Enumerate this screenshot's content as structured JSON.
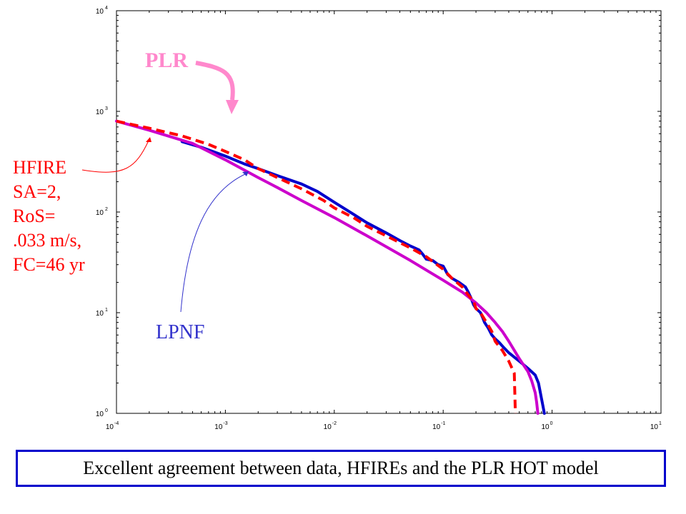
{
  "chart_data": {
    "type": "line",
    "xscale": "log",
    "yscale": "log",
    "xlim": [
      0.0001,
      10
    ],
    "ylim": [
      1,
      10000
    ],
    "grid": false,
    "x_ticks": [
      {
        "base": "10",
        "exp": "-4",
        "value": 0.0001
      },
      {
        "base": "10",
        "exp": "-3",
        "value": 0.001
      },
      {
        "base": "10",
        "exp": "-2",
        "value": 0.01
      },
      {
        "base": "10",
        "exp": "-1",
        "value": 0.1
      },
      {
        "base": "10",
        "exp": "0",
        "value": 1
      },
      {
        "base": "10",
        "exp": "1",
        "value": 10
      }
    ],
    "y_ticks": [
      {
        "base": "10",
        "exp": "0",
        "value": 1
      },
      {
        "base": "10",
        "exp": "1",
        "value": 10
      },
      {
        "base": "10",
        "exp": "2",
        "value": 100
      },
      {
        "base": "10",
        "exp": "3",
        "value": 1000
      },
      {
        "base": "10",
        "exp": "4",
        "value": 10000
      }
    ],
    "series": [
      {
        "name": "LPNF",
        "color": "#0000cc",
        "dash": "solid",
        "x": [
          0.0004,
          0.0006,
          0.001,
          0.0015,
          0.002,
          0.003,
          0.005,
          0.007,
          0.01,
          0.015,
          0.02,
          0.03,
          0.04,
          0.05,
          0.06,
          0.065,
          0.07,
          0.08,
          0.09,
          0.1,
          0.11,
          0.12,
          0.14,
          0.16,
          0.17,
          0.18,
          0.19,
          0.2,
          0.21,
          0.22,
          0.23,
          0.24,
          0.26,
          0.28,
          0.3,
          0.33,
          0.36,
          0.4,
          0.5,
          0.6,
          0.7,
          0.75,
          0.8,
          0.85
        ],
        "y": [
          500,
          440,
          360,
          300,
          270,
          230,
          190,
          160,
          125,
          95,
          78,
          62,
          52,
          46,
          42,
          38,
          34,
          33,
          30,
          29,
          24,
          22,
          20,
          18,
          16,
          14,
          12,
          11,
          10.5,
          10,
          9,
          8,
          7,
          6,
          5.5,
          5,
          4.5,
          4,
          3.3,
          2.8,
          2.4,
          2,
          1.4,
          1
        ]
      },
      {
        "name": "HFIRE SA=2, RoS=.033 m/s, FC=46 yr",
        "color": "#ff0000",
        "dash": "dashed",
        "x": [
          0.0001,
          0.0002,
          0.0004,
          0.0007,
          0.001,
          0.0015,
          0.002,
          0.003,
          0.005,
          0.008,
          0.01,
          0.015,
          0.02,
          0.03,
          0.05,
          0.07,
          0.1,
          0.12,
          0.15,
          0.17,
          0.19,
          0.2,
          0.22,
          0.25,
          0.28,
          0.3,
          0.35,
          0.4,
          0.45,
          0.46
        ],
        "y": [
          800,
          680,
          570,
          470,
          400,
          330,
          270,
          220,
          170,
          130,
          110,
          88,
          72,
          58,
          44,
          36,
          27,
          22,
          18,
          15,
          13,
          11,
          10,
          8,
          6.5,
          5.2,
          4.2,
          3.3,
          2.5,
          1
        ]
      },
      {
        "name": "PLR",
        "color": "#cc00cc",
        "dash": "solid",
        "x": [
          0.0001,
          0.0002,
          0.0005,
          0.001,
          0.002,
          0.003,
          0.005,
          0.01,
          0.02,
          0.05,
          0.1,
          0.15,
          0.2,
          0.25,
          0.3,
          0.35,
          0.4,
          0.5,
          0.6,
          0.65,
          0.7,
          0.72,
          0.74
        ],
        "y": [
          800,
          650,
          480,
          330,
          220,
          175,
          130,
          88,
          58,
          33,
          21,
          16,
          12.5,
          10,
          8,
          6.5,
          5.2,
          3.5,
          2.6,
          2.1,
          1.6,
          1.3,
          1
        ]
      }
    ],
    "annotations": {
      "plr": {
        "text": "PLR",
        "color": "#ff88cc"
      },
      "lpnf": {
        "text": "LPNF",
        "color": "#3333cc"
      },
      "hfire": {
        "lines": [
          "HFIRE",
          "SA=2,",
          "RoS=",
          ".033 m/s,",
          "FC=46 yr"
        ],
        "color": "#ff0000"
      }
    }
  },
  "caption": {
    "text": "Excellent agreement between data, HFIREs and the PLR HOT model",
    "border_color": "#0000cc"
  }
}
